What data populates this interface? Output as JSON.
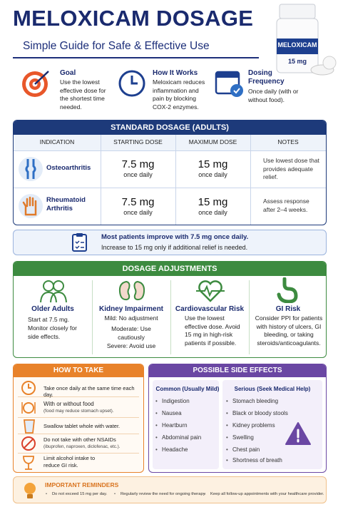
{
  "header": {
    "title": "MELOXICAM DOSAGE",
    "subtitle": "Simple Guide for Safe & Effective Use",
    "bottle_label": "MELOXICAM",
    "bottle_strength": "15 mg"
  },
  "intro": [
    {
      "title": "Goal",
      "text": "Use the lowest effective dose for the shortest time needed."
    },
    {
      "title": "How It Works",
      "text": "Meloxicam reduces inflammation and pain by blocking COX-2 enzymes."
    },
    {
      "title": "Dosing Frequency",
      "text": "Once daily (with or without food)."
    }
  ],
  "standard_dosage": {
    "title": "STANDARD DOSAGE (ADULTS)",
    "columns": [
      "INDICATION",
      "STARTING DOSE",
      "MAXIMUM DOSE",
      "NOTES"
    ],
    "rows": [
      {
        "indication": "Osteoarthritis",
        "starting_dose": "7.5 mg",
        "starting_freq": "once daily",
        "maximum_dose": "15 mg",
        "maximum_freq": "once daily",
        "notes": "Use lowest dose that provides adequate relief."
      },
      {
        "indication": "Rheumatoid Arthritis",
        "starting_dose": "7.5 mg",
        "starting_freq": "once daily",
        "maximum_dose": "15 mg",
        "maximum_freq": "once daily",
        "notes": "Assess response after 2–4 weeks."
      }
    ]
  },
  "callout": {
    "headline": "Most patients improve with 7.5 mg once daily.",
    "text": "Increase to 15 mg only if additional relief is needed."
  },
  "adjustments": {
    "title": "DOSAGE ADJUSTMENTS",
    "items": [
      {
        "title": "Older Adults",
        "lines": [
          "Start at 7.5 mg. Monitor closely for side effects."
        ]
      },
      {
        "title": "Kidney Impairment",
        "lines": [
          "Mild: No adjustment",
          "Moderate: Use cautiously",
          "Severe: Avoid use"
        ]
      },
      {
        "title": "Cardiovascular Risk",
        "lines": [
          "Use the lowest effective dose. Avoid 15 mg in high-risk patients if possible."
        ]
      },
      {
        "title": "GI Risk",
        "lines": [
          "Consider PPI for patients with history of ulcers, GI bleeding, or taking steroids/anticoagulants."
        ]
      }
    ]
  },
  "how_to_take": {
    "title": "HOW TO TAKE",
    "items": [
      {
        "text": "Take once daily at the same time each day."
      },
      {
        "text": "With or without food",
        "note": "(food may reduce stomach upset)."
      },
      {
        "text": "Swallow tablet whole with water."
      },
      {
        "text": "Do not take with other NSAIDs",
        "note": "(ibuprofen, naproxen, diclofenac, etc.)."
      },
      {
        "text": "Limit alcohol intake to reduce GI risk."
      }
    ]
  },
  "side_effects": {
    "title": "POSSIBLE SIDE EFFECTS",
    "common": {
      "title": "Common (Usually Mild)",
      "items": [
        "Indigestion",
        "Nausea",
        "Heartburn",
        "Abdominal pain",
        "Headache"
      ]
    },
    "serious": {
      "title": "Serious (Seek Medical Help)",
      "items": [
        "Stomach bleeding",
        "Black or bloody stools",
        "Kidney problems",
        "Swelling",
        "Chest pain",
        "Shortness of breath"
      ]
    }
  },
  "reminders": {
    "title": "IMPORTANT REMINDERS",
    "items": [
      "Do not exceed 15 mg per day.",
      "Regularly review the need for ongoing therapy.",
      "Keep all follow-up appointments with your healthcare provider."
    ]
  }
}
